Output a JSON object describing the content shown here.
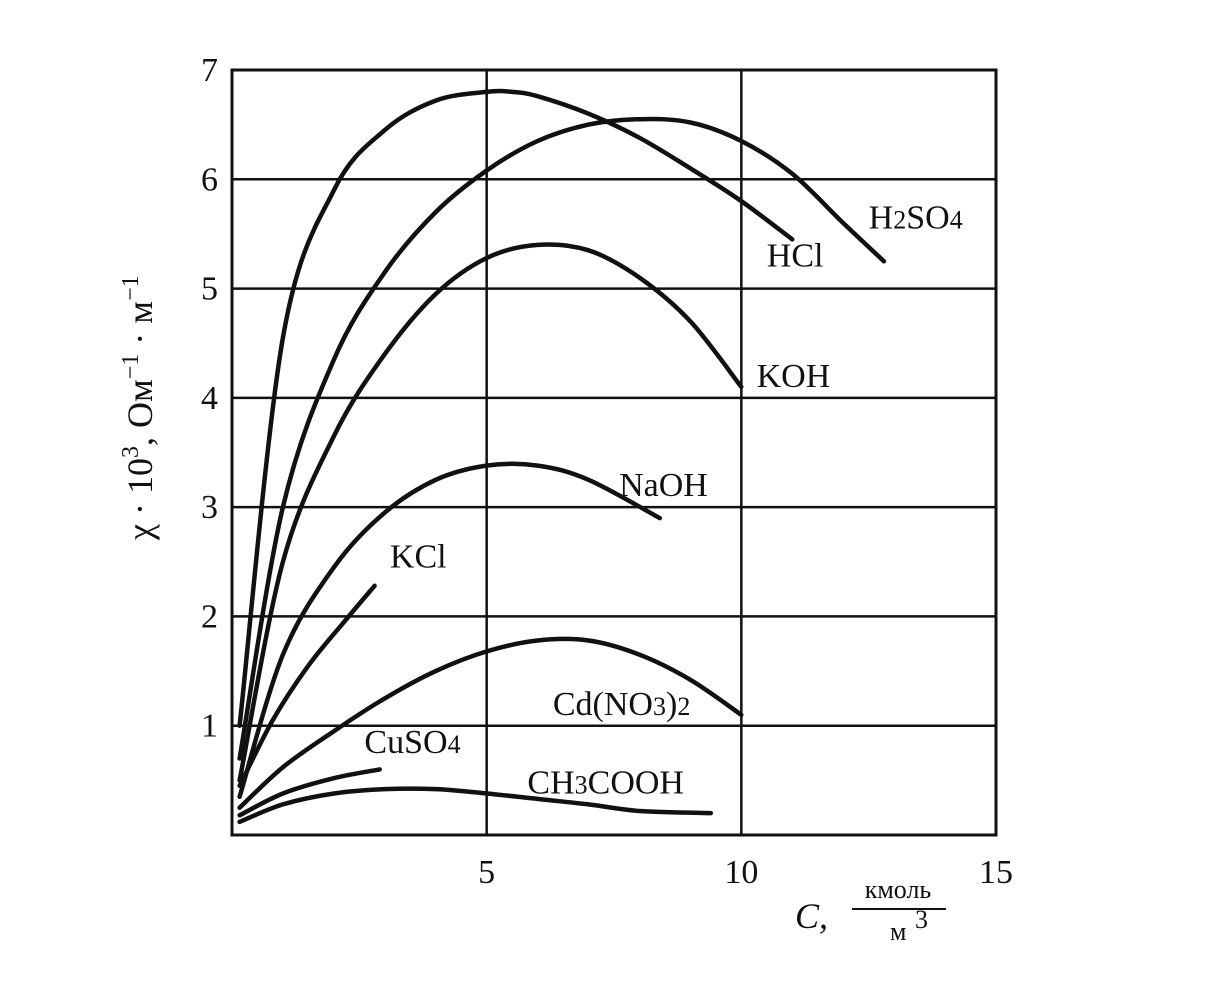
{
  "chart_data": {
    "type": "line",
    "grid": true,
    "xlim": [
      0,
      15
    ],
    "ylim": [
      0,
      7
    ],
    "x_ticks": [
      "5",
      "10",
      "15"
    ],
    "y_ticks": [
      "1",
      "2",
      "3",
      "4",
      "5",
      "6",
      "7"
    ],
    "xlabel": "C,",
    "x_unit_numerator": "кмоль",
    "x_unit_denominator": "м",
    "x_unit_denominator_power": "3",
    "ylabel": "χ · 10",
    "ylabel_power": "3",
    "ylabel_unit": ", Ом",
    "ylabel_unit_power": "−1",
    "ylabel_unit2": " · м",
    "ylabel_unit2_power": "−1",
    "series": [
      {
        "name": "HCl",
        "x": [
          0.15,
          1,
          2,
          3,
          4,
          5,
          5.5,
          6,
          7,
          8,
          9,
          10,
          11
        ],
        "y": [
          1.0,
          4.55,
          5.9,
          6.45,
          6.72,
          6.8,
          6.8,
          6.76,
          6.6,
          6.38,
          6.1,
          5.8,
          5.45
        ]
      },
      {
        "name": "H2SO4",
        "x": [
          0.15,
          1,
          2,
          3,
          4,
          5,
          6,
          7,
          8,
          9,
          10,
          11,
          12,
          12.8
        ],
        "y": [
          0.7,
          3.0,
          4.35,
          5.15,
          5.7,
          6.08,
          6.35,
          6.5,
          6.55,
          6.52,
          6.35,
          6.05,
          5.6,
          5.25
        ]
      },
      {
        "name": "KOH",
        "x": [
          0.15,
          1,
          2,
          3,
          4,
          5,
          6,
          7,
          8,
          9,
          10
        ],
        "y": [
          0.5,
          2.5,
          3.65,
          4.4,
          4.95,
          5.28,
          5.4,
          5.35,
          5.1,
          4.7,
          4.1
        ]
      },
      {
        "name": "NaOH",
        "x": [
          0.15,
          1,
          2,
          3,
          4,
          5,
          6,
          7,
          8.4
        ],
        "y": [
          0.35,
          1.65,
          2.45,
          2.95,
          3.25,
          3.38,
          3.38,
          3.25,
          2.9
        ]
      },
      {
        "name": "KCl",
        "x": [
          0.15,
          0.8,
          1.5,
          2.2,
          2.8
        ],
        "y": [
          0.45,
          1.05,
          1.55,
          1.95,
          2.28
        ]
      },
      {
        "name": "Cd(NO3)2",
        "x": [
          0.15,
          1,
          2,
          3,
          4,
          5,
          6,
          7,
          8,
          9,
          10
        ],
        "y": [
          0.25,
          0.62,
          0.95,
          1.25,
          1.5,
          1.68,
          1.78,
          1.78,
          1.65,
          1.42,
          1.1
        ]
      },
      {
        "name": "CuSO4",
        "x": [
          0.15,
          1,
          2,
          2.9
        ],
        "y": [
          0.18,
          0.38,
          0.52,
          0.6
        ]
      },
      {
        "name": "CH3COOH",
        "x": [
          0.15,
          1,
          2,
          3,
          4,
          5,
          6,
          7,
          8,
          9.4
        ],
        "y": [
          0.12,
          0.28,
          0.38,
          0.42,
          0.42,
          0.38,
          0.33,
          0.28,
          0.22,
          0.2
        ]
      }
    ],
    "label_positions": [
      {
        "name": "HCl",
        "at": [
          10.5,
          5.2
        ]
      },
      {
        "name": "H2SO4",
        "at": [
          12.5,
          5.55
        ]
      },
      {
        "name": "KOH",
        "at": [
          10.3,
          4.1
        ]
      },
      {
        "name": "NaOH",
        "at": [
          7.6,
          3.1
        ]
      },
      {
        "name": "KCl",
        "at": [
          3.1,
          2.45
        ]
      },
      {
        "name": "Cd(NO3)2",
        "at": [
          6.3,
          1.1
        ]
      },
      {
        "name": "CuSO4",
        "at": [
          2.6,
          0.75
        ]
      },
      {
        "name": "CH3COOH",
        "at": [
          5.8,
          0.38
        ]
      }
    ]
  }
}
